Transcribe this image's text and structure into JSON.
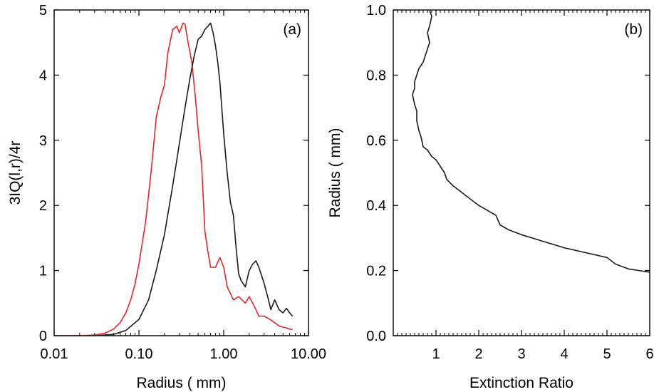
{
  "chart_data": [
    {
      "panel": "a",
      "type": "line",
      "panel_label": "(a)",
      "xlabel": "Radius ( mm)",
      "ylabel": "3IQ(l,r)/4r",
      "xscale": "log",
      "xlim": [
        0.01,
        10.0
      ],
      "ylim": [
        0,
        5
      ],
      "xticks": [
        0.01,
        0.1,
        1.0,
        10.0
      ],
      "xtick_labels": [
        "0.01",
        "0.10",
        "1.00",
        "10.00"
      ],
      "yticks": [
        0,
        1,
        2,
        3,
        4,
        5
      ],
      "ytick_labels": [
        "0",
        "1",
        "2",
        "3",
        "4",
        "5"
      ],
      "grid": false,
      "series": [
        {
          "color": "#e8262b",
          "x": [
            0.01,
            0.02,
            0.03,
            0.04,
            0.05,
            0.06,
            0.07,
            0.08,
            0.09,
            0.1,
            0.12,
            0.14,
            0.16,
            0.18,
            0.2,
            0.22,
            0.25,
            0.28,
            0.3,
            0.33,
            0.35,
            0.38,
            0.42,
            0.46,
            0.5,
            0.55,
            0.6,
            0.65,
            0.7,
            0.8,
            0.9,
            1.0,
            1.1,
            1.3,
            1.5,
            1.8,
            2.0,
            2.3,
            2.6,
            3.0,
            3.5,
            4.0,
            4.5,
            5.0,
            5.5,
            6.0,
            6.5
          ],
          "y": [
            0.0,
            0.0,
            0.01,
            0.04,
            0.1,
            0.2,
            0.35,
            0.55,
            0.8,
            1.1,
            1.75,
            2.55,
            3.35,
            3.65,
            3.85,
            4.35,
            4.7,
            4.75,
            4.65,
            4.8,
            4.78,
            4.5,
            4.2,
            3.7,
            3.15,
            2.6,
            1.6,
            1.3,
            1.05,
            1.05,
            1.2,
            1.05,
            0.75,
            0.55,
            0.6,
            0.5,
            0.6,
            0.45,
            0.3,
            0.3,
            0.25,
            0.2,
            0.15,
            0.13,
            0.12,
            0.1,
            0.1
          ]
        },
        {
          "color": "#1a1a1a",
          "x": [
            0.01,
            0.03,
            0.05,
            0.07,
            0.1,
            0.13,
            0.16,
            0.2,
            0.25,
            0.3,
            0.35,
            0.4,
            0.45,
            0.5,
            0.55,
            0.6,
            0.65,
            0.7,
            0.75,
            0.8,
            0.85,
            0.9,
            1.0,
            1.1,
            1.2,
            1.3,
            1.4,
            1.5,
            1.6,
            1.8,
            2.0,
            2.2,
            2.4,
            2.6,
            3.0,
            3.3,
            3.6,
            4.0,
            4.5,
            5.0,
            5.5,
            6.0,
            6.5
          ],
          "y": [
            0.0,
            0.0,
            0.02,
            0.08,
            0.25,
            0.55,
            1.0,
            1.55,
            2.3,
            2.95,
            3.5,
            3.95,
            4.3,
            4.55,
            4.6,
            4.7,
            4.75,
            4.8,
            4.65,
            4.45,
            4.2,
            3.9,
            3.1,
            2.5,
            2.05,
            1.85,
            1.35,
            0.95,
            0.85,
            0.75,
            1.0,
            1.1,
            1.15,
            1.05,
            0.8,
            0.6,
            0.4,
            0.55,
            0.4,
            0.35,
            0.42,
            0.35,
            0.3
          ]
        }
      ]
    },
    {
      "panel": "b",
      "type": "line",
      "panel_label": "(b)",
      "xlabel": "Extinction Ratio",
      "ylabel": "Radius ( mm)",
      "xlim": [
        0,
        6
      ],
      "ylim": [
        0.0,
        1.0
      ],
      "xticks": [
        1,
        2,
        3,
        4,
        5,
        6
      ],
      "xtick_labels": [
        "1",
        "2",
        "3",
        "4",
        "5",
        "6"
      ],
      "yticks": [
        0.0,
        0.2,
        0.4,
        0.6,
        0.8,
        1.0
      ],
      "ytick_labels": [
        "0.0",
        "0.2",
        "0.4",
        "0.6",
        "0.8",
        "1.0"
      ],
      "grid": false,
      "series": [
        {
          "color": "#1a1a1a",
          "x": [
            6.0,
            5.5,
            5.2,
            5.0,
            4.5,
            4.0,
            3.5,
            3.0,
            2.7,
            2.5,
            2.4,
            2.2,
            2.0,
            1.8,
            1.6,
            1.4,
            1.25,
            1.2,
            1.0,
            0.9,
            0.8,
            0.7,
            0.65,
            0.6,
            0.55,
            0.55,
            0.5,
            0.45,
            0.5,
            0.5,
            0.55,
            0.6,
            0.7,
            0.75,
            0.8,
            0.85,
            0.8,
            0.85,
            0.9,
            0.85
          ],
          "y": [
            0.195,
            0.205,
            0.22,
            0.24,
            0.255,
            0.27,
            0.29,
            0.31,
            0.325,
            0.34,
            0.37,
            0.385,
            0.4,
            0.42,
            0.44,
            0.46,
            0.48,
            0.5,
            0.54,
            0.55,
            0.57,
            0.58,
            0.61,
            0.63,
            0.66,
            0.69,
            0.71,
            0.74,
            0.76,
            0.78,
            0.8,
            0.82,
            0.84,
            0.86,
            0.88,
            0.9,
            0.93,
            0.95,
            0.98,
            1.0
          ]
        }
      ]
    }
  ]
}
